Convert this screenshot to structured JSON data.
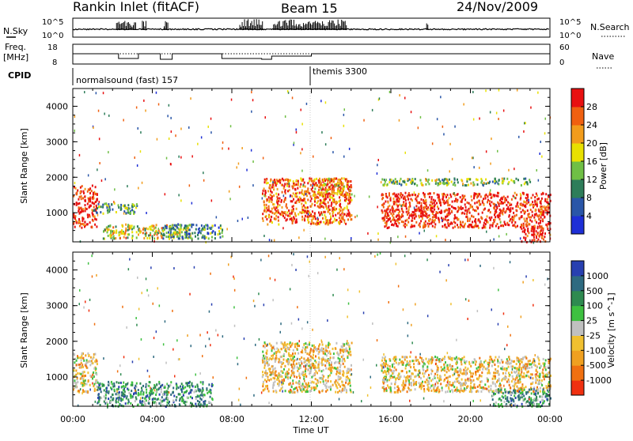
{
  "header": {
    "title": "Rankin Inlet (fitACF)",
    "beam": "Beam 15",
    "date": "24/Nov/2009"
  },
  "noise_panel": {
    "left_label": "N.Sky",
    "right_label": "N.Search",
    "left_ticks": [
      "10^5",
      "10^0"
    ],
    "right_ticks": [
      "10^5",
      "10^0"
    ]
  },
  "freq_panel": {
    "left_label_line1": "Freq.",
    "left_label_line2": "[MHz]",
    "right_label": "Nave",
    "left_ticks": [
      "18",
      "8"
    ],
    "right_ticks": [
      "60",
      "0"
    ]
  },
  "cpid": {
    "label": "CPID",
    "modes": [
      {
        "name": "normalsound (fast) 157",
        "start_hour": 0
      },
      {
        "name": "themis 3300",
        "start_hour": 12
      }
    ]
  },
  "chart_data": [
    {
      "type": "heatmap",
      "title": "",
      "ylabel": "Slant Range [km]",
      "xlabel": "",
      "xlim": [
        0,
        24
      ],
      "ylim": [
        180,
        4500
      ],
      "yticks": [
        1000,
        2000,
        3000,
        4000
      ],
      "colorbar": {
        "label": "Power [dB]",
        "ticks": [
          "4",
          "8",
          "12",
          "16",
          "20",
          "24",
          "28"
        ],
        "colors": [
          "#1e2fd6",
          "#2a56a8",
          "#2e7d5a",
          "#6fbf45",
          "#e8e000",
          "#f29c1c",
          "#f06010",
          "#e81010"
        ]
      },
      "echo_regions": [
        {
          "x": [
            0,
            1.2
          ],
          "y": [
            600,
            1800
          ],
          "level": "28"
        },
        {
          "x": [
            1,
            3.2
          ],
          "y": [
            1000,
            1300
          ],
          "level": "8"
        },
        {
          "x": [
            1.5,
            6
          ],
          "y": [
            300,
            700
          ],
          "level": "16"
        },
        {
          "x": [
            4.5,
            7.5
          ],
          "y": [
            300,
            700
          ],
          "level": "8"
        },
        {
          "x": [
            9.5,
            14
          ],
          "y": [
            700,
            2000
          ],
          "level": "24"
        },
        {
          "x": [
            12,
            14
          ],
          "y": [
            1500,
            2000
          ],
          "level": "20"
        },
        {
          "x": [
            15.5,
            24
          ],
          "y": [
            600,
            1600
          ],
          "level": "28"
        },
        {
          "x": [
            15.5,
            23
          ],
          "y": [
            1800,
            2000
          ],
          "level": "12"
        },
        {
          "x": [
            22.5,
            24
          ],
          "y": [
            200,
            600
          ],
          "level": "28"
        }
      ]
    },
    {
      "type": "heatmap",
      "title": "",
      "ylabel": "Slant Range [km]",
      "xlabel": "Time UT",
      "xlim": [
        0,
        24
      ],
      "ylim": [
        180,
        4500
      ],
      "xticks": [
        "00:00",
        "04:00",
        "08:00",
        "12:00",
        "16:00",
        "20:00",
        "00:00"
      ],
      "yticks": [
        1000,
        2000,
        3000,
        4000
      ],
      "colorbar": {
        "label": "Velocity [m s^-1]",
        "ticks": [
          "1000",
          "500",
          "100",
          "25",
          "-25",
          "-100",
          "-500",
          "-1000"
        ],
        "colors": [
          "#2840b0",
          "#2e6a80",
          "#2e8a50",
          "#3ec040",
          "#c0c0c0",
          "#f0c030",
          "#f0a020",
          "#f07010",
          "#f03010"
        ]
      },
      "echo_regions": [
        {
          "x": [
            0,
            1.2
          ],
          "y": [
            600,
            1700
          ],
          "level": "-100"
        },
        {
          "x": [
            1.2,
            7
          ],
          "y": [
            200,
            900
          ],
          "level": "100"
        },
        {
          "x": [
            9.5,
            14
          ],
          "y": [
            600,
            2000
          ],
          "level": "-100"
        },
        {
          "x": [
            15.5,
            24
          ],
          "y": [
            600,
            1600
          ],
          "level": "-100"
        },
        {
          "x": [
            21,
            24
          ],
          "y": [
            200,
            700
          ],
          "level": "100"
        }
      ]
    }
  ]
}
